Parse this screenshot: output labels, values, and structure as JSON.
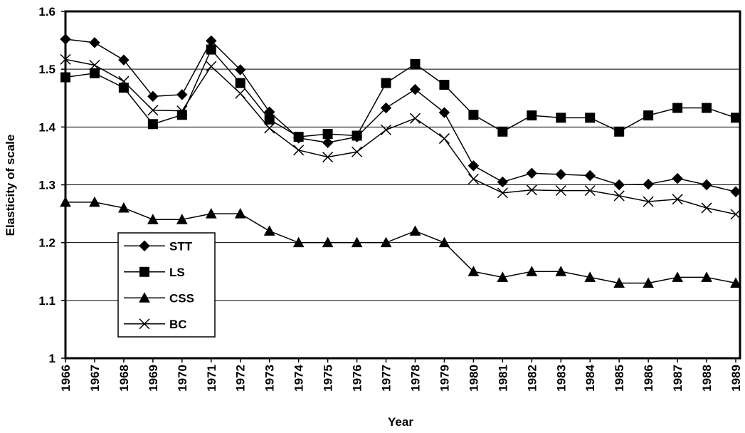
{
  "chart_data": {
    "type": "line",
    "x_label": "Year",
    "y_label": "Elasticity of scale",
    "categories": [
      "1966",
      "1967",
      "1968",
      "1969",
      "1970",
      "1971",
      "1972",
      "1973",
      "1974",
      "1975",
      "1976",
      "1977",
      "1978",
      "1979",
      "1980",
      "1981",
      "1982",
      "1983",
      "1984",
      "1985",
      "1986",
      "1987",
      "1988",
      "1989"
    ],
    "series": [
      {
        "name": "STT",
        "color": "#000000",
        "marker": "diamond",
        "values": [
          1.552,
          1.546,
          1.516,
          1.453,
          1.456,
          1.549,
          1.499,
          1.426,
          1.381,
          1.373,
          1.383,
          1.433,
          1.465,
          1.425,
          1.333,
          1.305,
          1.32,
          1.318,
          1.316,
          1.3,
          1.301,
          1.311,
          1.3,
          1.288
        ]
      },
      {
        "name": "LS",
        "color": "#000000",
        "marker": "square",
        "values": [
          1.486,
          1.493,
          1.468,
          1.405,
          1.421,
          1.534,
          1.476,
          1.413,
          1.383,
          1.388,
          1.385,
          1.476,
          1.509,
          1.473,
          1.421,
          1.392,
          1.42,
          1.416,
          1.416,
          1.392,
          1.42,
          1.433,
          1.433,
          1.416
        ]
      },
      {
        "name": "CSS",
        "color": "#000000",
        "marker": "triangle",
        "values": [
          1.27,
          1.27,
          1.26,
          1.24,
          1.24,
          1.25,
          1.25,
          1.22,
          1.2,
          1.2,
          1.2,
          1.2,
          1.22,
          1.2,
          1.15,
          1.14,
          1.15,
          1.15,
          1.14,
          1.13,
          1.13,
          1.14,
          1.14,
          1.13
        ]
      },
      {
        "name": "BC",
        "color": "#000000",
        "marker": "x",
        "values": [
          1.517,
          1.507,
          1.479,
          1.429,
          1.428,
          1.505,
          1.458,
          1.398,
          1.36,
          1.348,
          1.357,
          1.395,
          1.415,
          1.38,
          1.31,
          1.286,
          1.291,
          1.29,
          1.29,
          1.281,
          1.271,
          1.275,
          1.26,
          1.249
        ]
      }
    ],
    "ylim": [
      1,
      1.6
    ],
    "yticks": [
      1,
      1.1,
      1.2,
      1.3,
      1.4,
      1.5,
      1.6
    ],
    "grid": true,
    "legend": "lower-left"
  }
}
